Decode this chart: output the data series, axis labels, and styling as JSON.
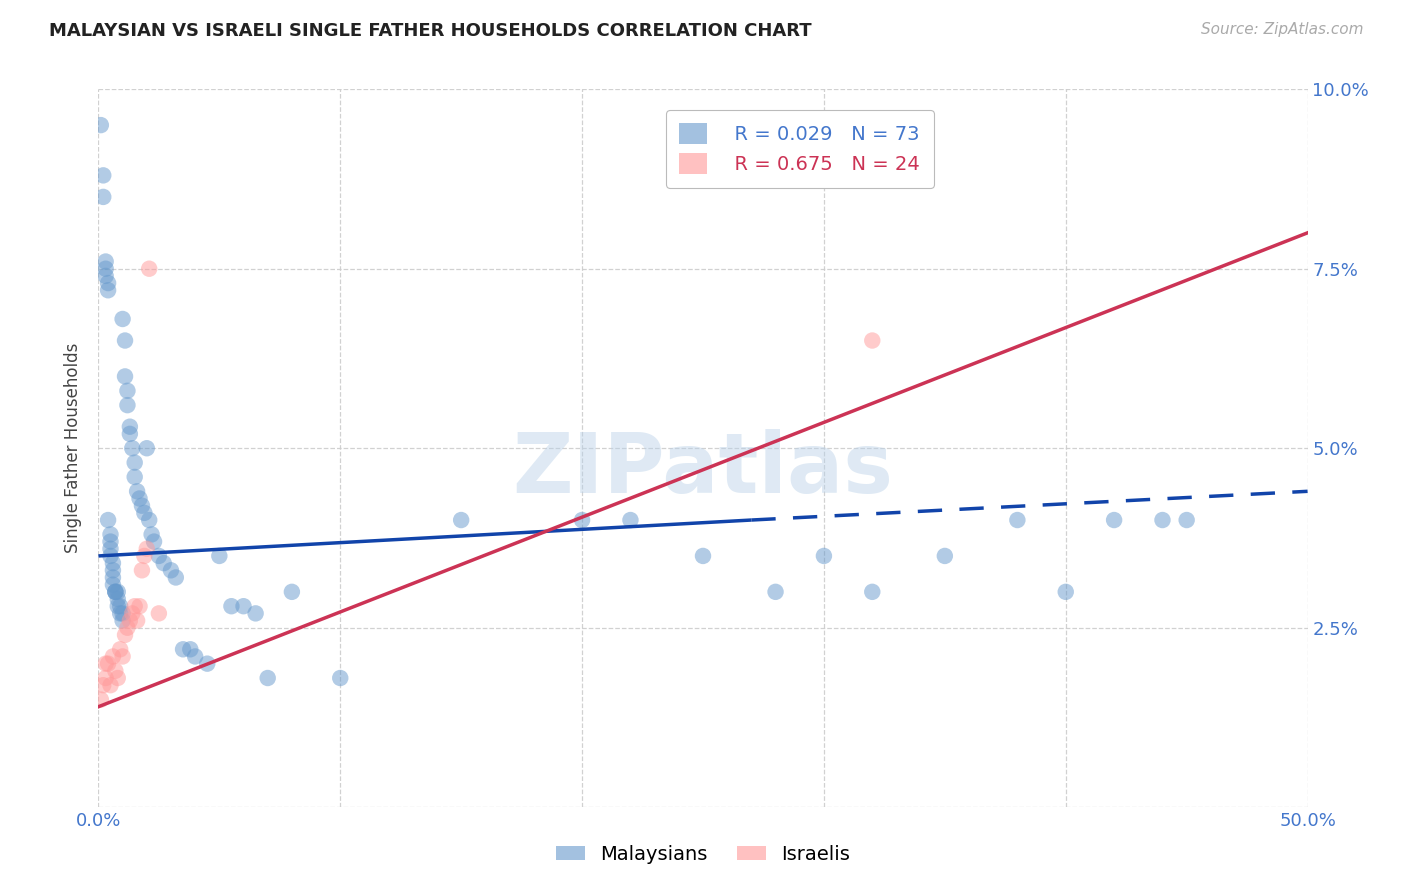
{
  "title": "MALAYSIAN VS ISRAELI SINGLE FATHER HOUSEHOLDS CORRELATION CHART",
  "source": "Source: ZipAtlas.com",
  "ylabel": "Single Father Households",
  "xlim": [
    0,
    0.5
  ],
  "ylim": [
    0,
    0.1
  ],
  "malaysian_r": 0.029,
  "malaysian_n": 73,
  "israeli_r": 0.675,
  "israeli_n": 24,
  "malaysian_color": "#6699cc",
  "israeli_color": "#ff9999",
  "line_color_malaysian": "#1144aa",
  "line_color_israeli": "#cc3355",
  "watermark_color": "#b8d0e8",
  "grid_color": "#cccccc",
  "tick_color": "#4477cc",
  "ytick_labels": [
    "",
    "2.5%",
    "5.0%",
    "7.5%",
    "10.0%"
  ],
  "xtick_labels": [
    "0.0%",
    "",
    "",
    "",
    "",
    "50.0%"
  ],
  "ytick_vals": [
    0.0,
    0.025,
    0.05,
    0.075,
    0.1
  ],
  "xtick_vals": [
    0.0,
    0.1,
    0.2,
    0.3,
    0.4,
    0.5
  ],
  "mal_x": [
    0.001,
    0.002,
    0.002,
    0.003,
    0.003,
    0.003,
    0.004,
    0.004,
    0.004,
    0.005,
    0.005,
    0.005,
    0.005,
    0.006,
    0.006,
    0.006,
    0.006,
    0.007,
    0.007,
    0.007,
    0.008,
    0.008,
    0.008,
    0.009,
    0.009,
    0.01,
    0.01,
    0.01,
    0.011,
    0.011,
    0.012,
    0.012,
    0.013,
    0.013,
    0.014,
    0.015,
    0.015,
    0.016,
    0.017,
    0.018,
    0.019,
    0.02,
    0.021,
    0.022,
    0.023,
    0.025,
    0.027,
    0.03,
    0.032,
    0.035,
    0.038,
    0.04,
    0.045,
    0.05,
    0.055,
    0.06,
    0.065,
    0.07,
    0.08,
    0.1,
    0.15,
    0.2,
    0.22,
    0.25,
    0.28,
    0.3,
    0.32,
    0.35,
    0.38,
    0.4,
    0.42,
    0.44,
    0.45
  ],
  "mal_y": [
    0.095,
    0.088,
    0.085,
    0.076,
    0.075,
    0.074,
    0.073,
    0.072,
    0.04,
    0.038,
    0.037,
    0.036,
    0.035,
    0.034,
    0.033,
    0.032,
    0.031,
    0.03,
    0.03,
    0.03,
    0.03,
    0.029,
    0.028,
    0.028,
    0.027,
    0.027,
    0.026,
    0.068,
    0.065,
    0.06,
    0.058,
    0.056,
    0.053,
    0.052,
    0.05,
    0.048,
    0.046,
    0.044,
    0.043,
    0.042,
    0.041,
    0.05,
    0.04,
    0.038,
    0.037,
    0.035,
    0.034,
    0.033,
    0.032,
    0.022,
    0.022,
    0.021,
    0.02,
    0.035,
    0.028,
    0.028,
    0.027,
    0.018,
    0.03,
    0.018,
    0.04,
    0.04,
    0.04,
    0.035,
    0.03,
    0.035,
    0.03,
    0.035,
    0.04,
    0.03,
    0.04,
    0.04,
    0.04
  ],
  "isr_x": [
    0.001,
    0.002,
    0.003,
    0.003,
    0.004,
    0.005,
    0.006,
    0.007,
    0.008,
    0.009,
    0.01,
    0.011,
    0.012,
    0.013,
    0.014,
    0.015,
    0.016,
    0.017,
    0.018,
    0.019,
    0.02,
    0.021,
    0.025,
    0.32
  ],
  "isr_y": [
    0.015,
    0.017,
    0.018,
    0.02,
    0.02,
    0.017,
    0.021,
    0.019,
    0.018,
    0.022,
    0.021,
    0.024,
    0.025,
    0.026,
    0.027,
    0.028,
    0.026,
    0.028,
    0.033,
    0.035,
    0.036,
    0.075,
    0.027,
    0.065
  ],
  "mal_line_x0": 0.0,
  "mal_line_x_solid_end": 0.27,
  "mal_line_x1": 0.5,
  "mal_line_y0": 0.035,
  "mal_line_y_solid_end": 0.04,
  "mal_line_y1": 0.044,
  "isr_line_x0": 0.0,
  "isr_line_x1": 0.5,
  "isr_line_y0": 0.014,
  "isr_line_y1": 0.08
}
